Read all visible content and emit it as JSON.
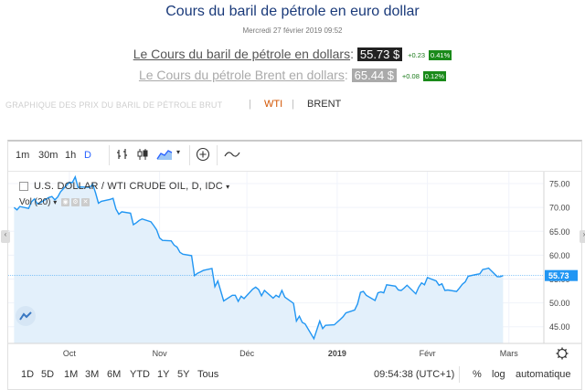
{
  "header": {
    "title": "Cours du baril de pétrole en euro dollar",
    "date": "Mercredi 27 février 2019 09:52"
  },
  "quotes": [
    {
      "label": "Le Cours du baril de pétrole en dollars",
      "colon": ":",
      "price": "55.73 $",
      "change": "+0.23",
      "pct": "0.41%",
      "price_bg": "#222222",
      "label_color": "#555555"
    },
    {
      "label": "Le Cours du pétrole Brent en dollars",
      "colon": ":",
      "price": "65.44 $",
      "change": "+0.08",
      "pct": "0.12%",
      "price_bg": "#aaaaaa",
      "label_color": "#aaaaaa"
    }
  ],
  "tabs": {
    "heading": "GRAPHIQUE DES PRIX DU BARIL DE PÉTROLE BRUT",
    "sep": "|",
    "wti": "WTI",
    "brent": "BRENT"
  },
  "toolbar": {
    "intervals": [
      "1m",
      "30m",
      "1h",
      "D"
    ],
    "active_interval": "D"
  },
  "legend": {
    "symbol": "U.S. DOLLAR / WTI CRUDE OIL, D, IDC",
    "vol": "Vol (20)"
  },
  "footer": {
    "ranges": [
      "1D",
      "5D",
      "1M",
      "3M",
      "6M",
      "YTD",
      "1Y",
      "5Y",
      "Tous"
    ],
    "time": "09:54:38 (UTC+1)",
    "pct": "%",
    "log": "log",
    "auto": "automatique"
  },
  "colors": {
    "line": "#2196f3",
    "area": "#e3f0fb",
    "last_price_bg": "#2196f3",
    "accent": "#2962ff"
  },
  "chart_data": {
    "type": "area",
    "title": "",
    "xlabel": "",
    "ylabel": "",
    "ylim": [
      41.5,
      77.5
    ],
    "yticks": [
      "75.00",
      "70.00",
      "65.00",
      "60.00",
      "55.00",
      "50.00",
      "45.00"
    ],
    "ytick_values": [
      75,
      70,
      65,
      60,
      55,
      50,
      45
    ],
    "xticks": [
      {
        "label": "Oct",
        "x": "2018-10-01"
      },
      {
        "label": "Nov",
        "x": "2018-11-01"
      },
      {
        "label": "Déc",
        "x": "2018-12-01"
      },
      {
        "label": "2019",
        "x": "2019-01-01"
      },
      {
        "label": "Févr",
        "x": "2019-02-01"
      },
      {
        "label": "Mars",
        "x": "2019-03-01"
      }
    ],
    "last_price": {
      "label": "55.73",
      "value": 55.73
    },
    "series": [
      {
        "x": [
          "2018-09-12",
          "2018-09-13",
          "2018-09-14",
          "2018-09-17",
          "2018-09-18",
          "2018-09-19",
          "2018-09-20",
          "2018-09-21",
          "2018-09-24",
          "2018-09-25",
          "2018-09-26",
          "2018-09-27",
          "2018-09-28",
          "2018-10-01",
          "2018-10-02",
          "2018-10-03",
          "2018-10-04",
          "2018-10-05",
          "2018-10-08",
          "2018-10-09",
          "2018-10-10",
          "2018-10-11",
          "2018-10-12",
          "2018-10-15",
          "2018-10-16",
          "2018-10-17",
          "2018-10-18",
          "2018-10-19",
          "2018-10-22",
          "2018-10-23",
          "2018-10-24",
          "2018-10-25",
          "2018-10-26",
          "2018-10-29",
          "2018-10-30",
          "2018-10-31",
          "2018-11-01",
          "2018-11-02",
          "2018-11-05",
          "2018-11-06",
          "2018-11-07",
          "2018-11-08",
          "2018-11-09",
          "2018-11-12",
          "2018-11-13",
          "2018-11-14",
          "2018-11-15",
          "2018-11-16",
          "2018-11-19",
          "2018-11-20",
          "2018-11-21",
          "2018-11-23",
          "2018-11-26",
          "2018-11-27",
          "2018-11-28",
          "2018-11-29",
          "2018-11-30",
          "2018-12-03",
          "2018-12-04",
          "2018-12-05",
          "2018-12-06",
          "2018-12-07",
          "2018-12-10",
          "2018-12-11",
          "2018-12-12",
          "2018-12-13",
          "2018-12-14",
          "2018-12-17",
          "2018-12-18",
          "2018-12-19",
          "2018-12-20",
          "2018-12-21",
          "2018-12-24",
          "2018-12-26",
          "2018-12-27",
          "2018-12-28",
          "2018-12-31",
          "2019-01-02",
          "2019-01-03",
          "2019-01-04",
          "2019-01-07",
          "2019-01-08",
          "2019-01-09",
          "2019-01-10",
          "2019-01-11",
          "2019-01-14",
          "2019-01-15",
          "2019-01-16",
          "2019-01-17",
          "2019-01-18",
          "2019-01-21",
          "2019-01-22",
          "2019-01-23",
          "2019-01-24",
          "2019-01-25",
          "2019-01-28",
          "2019-01-29",
          "2019-01-30",
          "2019-01-31",
          "2019-02-01",
          "2019-02-04",
          "2019-02-05",
          "2019-02-06",
          "2019-02-07",
          "2019-02-08",
          "2019-02-11",
          "2019-02-12",
          "2019-02-13",
          "2019-02-14",
          "2019-02-15",
          "2019-02-18",
          "2019-02-19",
          "2019-02-20",
          "2019-02-21",
          "2019-02-22",
          "2019-02-25",
          "2019-02-26",
          "2019-02-27"
        ],
        "values": [
          70.0,
          69.5,
          70.2,
          69.8,
          71.2,
          71.8,
          70.8,
          71.0,
          72.1,
          72.3,
          71.6,
          72.2,
          73.3,
          75.3,
          75.2,
          76.4,
          74.2,
          74.3,
          74.2,
          74.9,
          73.1,
          70.9,
          71.3,
          71.7,
          71.9,
          69.7,
          68.6,
          69.1,
          68.8,
          66.4,
          66.8,
          67.3,
          67.6,
          67.0,
          66.2,
          65.3,
          63.6,
          63.1,
          63.0,
          62.1,
          61.7,
          60.6,
          60.2,
          59.9,
          55.7,
          56.2,
          56.5,
          56.8,
          57.2,
          53.4,
          54.6,
          50.4,
          51.6,
          51.6,
          50.3,
          51.4,
          50.9,
          52.9,
          53.3,
          52.8,
          51.5,
          52.6,
          51.0,
          51.6,
          51.2,
          52.6,
          51.2,
          49.9,
          46.2,
          47.2,
          45.9,
          45.6,
          42.5,
          46.2,
          44.6,
          45.3,
          45.4,
          46.5,
          47.1,
          47.9,
          48.5,
          49.8,
          52.2,
          52.4,
          51.6,
          50.5,
          52.1,
          52.3,
          52.1,
          53.8,
          53.5,
          52.7,
          52.6,
          53.1,
          53.7,
          51.9,
          53.3,
          54.2,
          53.8,
          55.3,
          54.6,
          53.7,
          54.0,
          52.6,
          52.7,
          52.4,
          53.1,
          53.9,
          54.4,
          55.6,
          56.0,
          56.1,
          57.0,
          57.1,
          57.3,
          55.5,
          55.5,
          55.73
        ]
      }
    ]
  }
}
